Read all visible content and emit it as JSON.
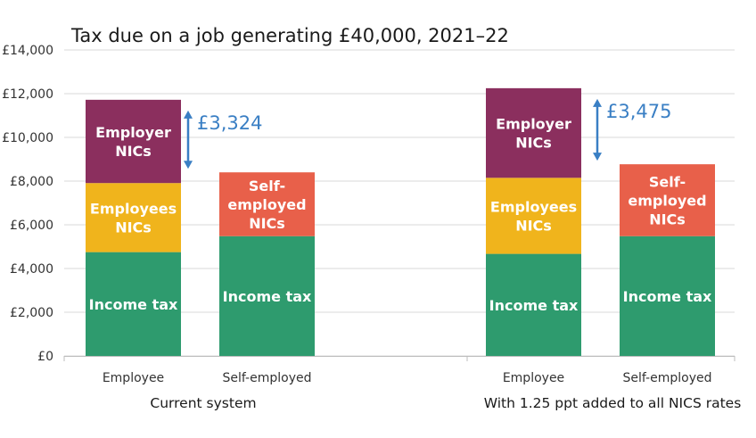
{
  "chart_data": {
    "type": "bar",
    "stacked": true,
    "title": "Tax due on a job generating £40,000, 2021–22",
    "ylim": [
      0,
      14000
    ],
    "yticks": [
      "£0",
      "£2,000",
      "£4,000",
      "£6,000",
      "£8,000",
      "£10,000",
      "£12,000",
      "£14,000"
    ],
    "grid": true,
    "colors": {
      "Income tax": "#2e9b6e",
      "Employees NICs": "#f0b41c",
      "Employer NICs": "#8b2f5e",
      "Self-employed NICs": "#e8604a",
      "arrow": "#3a7fc4"
    },
    "groups": [
      {
        "label": "Current system",
        "difference": "£3,324",
        "bars": [
          {
            "category": "Employee",
            "segments": [
              {
                "name": "Income tax",
                "label": "Income tax",
                "value": 4750
              },
              {
                "name": "Employees NICs",
                "label": "Employees NICs",
                "value": 3160
              },
              {
                "name": "Employer NICs",
                "label": "Employer NICs",
                "value": 3810
              }
            ]
          },
          {
            "category": "Self-employed",
            "segments": [
              {
                "name": "Income tax",
                "label": "Income tax",
                "value": 5480
              },
              {
                "name": "Self-employed NICs",
                "label": "Self- employed NICs",
                "value": 2920
              }
            ]
          }
        ]
      },
      {
        "label": "With 1.25 ppt added to all NICS rates",
        "difference": "£3,475",
        "bars": [
          {
            "category": "Employee",
            "segments": [
              {
                "name": "Income tax",
                "label": "Income tax",
                "value": 4670
              },
              {
                "name": "Employees NICs",
                "label": "Employees NICs",
                "value": 3480
              },
              {
                "name": "Employer NICs",
                "label": "Employer NICs",
                "value": 4100
              }
            ]
          },
          {
            "category": "Self-employed",
            "segments": [
              {
                "name": "Income tax",
                "label": "Income tax",
                "value": 5480
              },
              {
                "name": "Self-employed NICs",
                "label": "Self- employed NICs",
                "value": 3290
              }
            ]
          }
        ]
      }
    ]
  }
}
